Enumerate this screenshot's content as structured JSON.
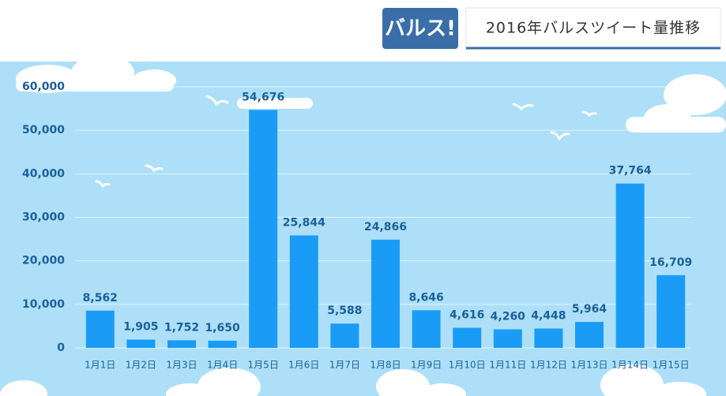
{
  "chart_data": {
    "type": "bar",
    "logo": "バルス!",
    "title": "2016年バルスツイート量推移",
    "categories": [
      "1月1日",
      "1月2日",
      "1月3日",
      "1月4日",
      "1月5日",
      "1月6日",
      "1月7日",
      "1月8日",
      "1月9日",
      "1月10日",
      "1月11日",
      "1月12日",
      "1月13日",
      "1月14日",
      "1月15日"
    ],
    "values": [
      8562,
      1905,
      1752,
      1650,
      54676,
      25844,
      5588,
      24866,
      8646,
      4616,
      4260,
      4448,
      5964,
      37764,
      16709
    ],
    "value_labels": [
      "8,562",
      "1,905",
      "1,752",
      "1,650",
      "54,676",
      "25,844",
      "5,588",
      "24,866",
      "8,646",
      "4,616",
      "4,260",
      "4,448",
      "5,964",
      "37,764",
      "16,709"
    ],
    "color": "#1a9cf6",
    "ylim": [
      0,
      60000
    ],
    "yticks": [
      0,
      {
        "value": 10000,
        "label": "10,000"
      },
      {
        "value": 20000,
        "label": "20,000"
      },
      {
        "value": 30000,
        "label": "30,000"
      },
      {
        "value": 40000,
        "label": "40,000"
      },
      {
        "value": 50000,
        "label": "50,000"
      },
      {
        "value": 60000,
        "label": "60,000"
      }
    ],
    "grid": true
  }
}
